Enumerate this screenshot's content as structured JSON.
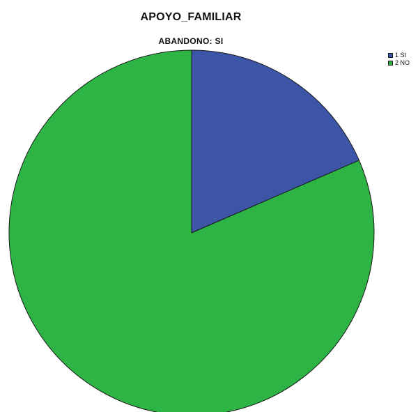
{
  "chart_data": {
    "type": "pie",
    "title": "APOYO_FAMILIAR",
    "subtitle": "ABANDONO: SI",
    "categories": [
      "1 SI",
      "2 NO"
    ],
    "values": [
      18.5,
      81.5
    ],
    "colors": [
      "#3d55a6",
      "#2db444"
    ],
    "outline_color": "#1a1a1a",
    "legend_position": "top-right",
    "start_angle_deg": 0,
    "direction": "clockwise"
  }
}
